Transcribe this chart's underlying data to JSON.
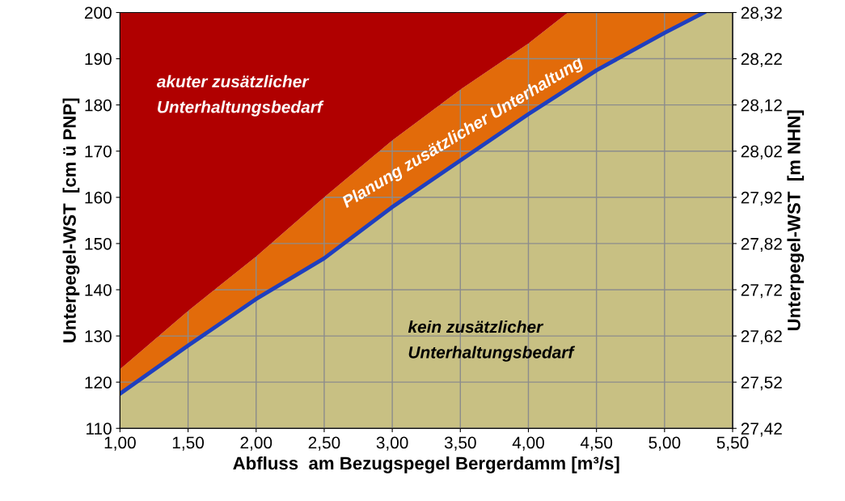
{
  "chart_data": {
    "type": "area",
    "xlabel": "Abfluss  am Bezugspegel Bergerdamm [m³/s]",
    "ylabel": "Unterpegel-WST  [cm ü PNP]",
    "y2label": "Unterpegel-WST  [m NHN]",
    "xlim": [
      1.0,
      5.5
    ],
    "xticks": [
      {
        "value": 1.0,
        "label": "1,00"
      },
      {
        "value": 1.5,
        "label": "1,50"
      },
      {
        "value": 2.0,
        "label": "2,00"
      },
      {
        "value": 2.5,
        "label": "2,50"
      },
      {
        "value": 3.0,
        "label": "3,00"
      },
      {
        "value": 3.5,
        "label": "3,50"
      },
      {
        "value": 4.0,
        "label": "4,00"
      },
      {
        "value": 4.5,
        "label": "4,50"
      },
      {
        "value": 5.0,
        "label": "5,00"
      },
      {
        "value": 5.5,
        "label": "5,50"
      }
    ],
    "ylim": [
      110,
      200
    ],
    "yticks": [
      110,
      120,
      130,
      140,
      150,
      160,
      170,
      180,
      190,
      200
    ],
    "y2lim": [
      27.42,
      28.32
    ],
    "y2ticks": [
      {
        "value": 27.42,
        "label": "27,42"
      },
      {
        "value": 27.52,
        "label": "27,52"
      },
      {
        "value": 27.62,
        "label": "27,62"
      },
      {
        "value": 27.72,
        "label": "27,72"
      },
      {
        "value": 27.82,
        "label": "27,82"
      },
      {
        "value": 27.92,
        "label": "27,92"
      },
      {
        "value": 28.02,
        "label": "28,02"
      },
      {
        "value": 28.12,
        "label": "28,12"
      },
      {
        "value": 28.22,
        "label": "28,22"
      },
      {
        "value": 28.32,
        "label": "28,32"
      }
    ],
    "grid": true,
    "series": [
      {
        "color": "#c8c083",
        "x": [
          1.0,
          1.5,
          2.0,
          2.5,
          3.0,
          3.5,
          4.0,
          4.5,
          5.0,
          5.29,
          5.5
        ],
        "values": [
          117.5,
          127.9,
          138,
          146.8,
          157.9,
          168,
          178,
          187.5,
          195.6,
          200,
          200
        ]
      },
      {
        "color": "#e26b0a",
        "x": [
          1.0,
          1.5,
          2.0,
          2.5,
          3.0,
          3.5,
          4.0,
          4.29,
          4.5,
          5.0,
          5.29,
          5.5
        ],
        "values": [
          122.8,
          135.4,
          147.2,
          160,
          172.3,
          183.3,
          193.3,
          200,
          200,
          200,
          200,
          200
        ]
      },
      {
        "color": "#b00000",
        "x": [
          1.0,
          1.5,
          2.0,
          2.5,
          3.0,
          3.5,
          4.0,
          4.29,
          4.5,
          5.0,
          5.29,
          5.5
        ],
        "values": [
          200,
          200,
          200,
          200,
          200,
          200,
          200,
          200,
          200,
          200,
          200,
          200
        ]
      },
      {
        "type": "line",
        "color": "#1f3fbf",
        "x": [
          1.0,
          1.5,
          2.0,
          2.5,
          3.0,
          3.5,
          4.0,
          4.5,
          5.0,
          5.29
        ],
        "values": [
          117.5,
          127.9,
          138,
          146.8,
          157.9,
          168,
          178,
          187.5,
          195.6,
          200
        ]
      }
    ],
    "annotations": [
      "akuter zusätzlicher\nUnterhaltungsbedarf",
      "Planung zusätzlicher Unterhaltung",
      "kein zusätzlicher\nUnterhaltungsbedarf"
    ],
    "legend": false
  }
}
